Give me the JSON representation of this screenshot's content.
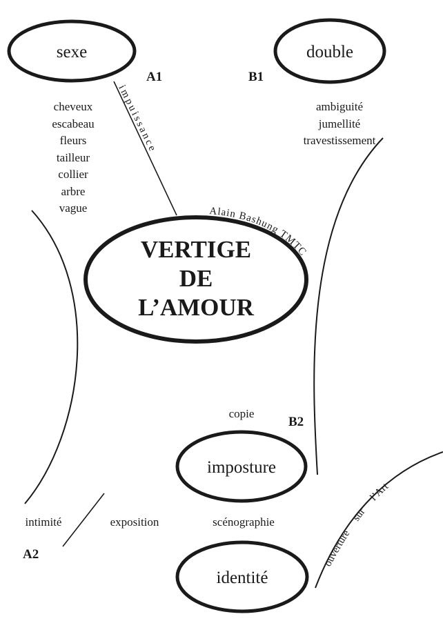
{
  "center": {
    "line1": "VERTIGE",
    "line2": "DE",
    "line3": "L’AMOUR",
    "arc_label": "Alain Bashung TMTC"
  },
  "nodes": {
    "sexe": "sexe",
    "double": "double",
    "imposture": "imposture",
    "identite": "identité"
  },
  "labels": {
    "a1": "A1",
    "b1": "B1",
    "a2": "A2",
    "b2": "B2"
  },
  "sexe_list": [
    "cheveux",
    "escabeau",
    "fleurs",
    "tailleur",
    "collier",
    "arbre",
    "vague"
  ],
  "double_list": [
    "ambiguité",
    "jumellité",
    "travestissement"
  ],
  "connector_label": "impuissance",
  "bottom_row": {
    "intimite": "intimité",
    "exposition": "exposition",
    "scenographie": "scénographie"
  },
  "copie": "copie",
  "ouverture": "ouverture sur l’Art",
  "colors": {
    "ink": "#1a1a1a",
    "background": "#ffffff"
  }
}
